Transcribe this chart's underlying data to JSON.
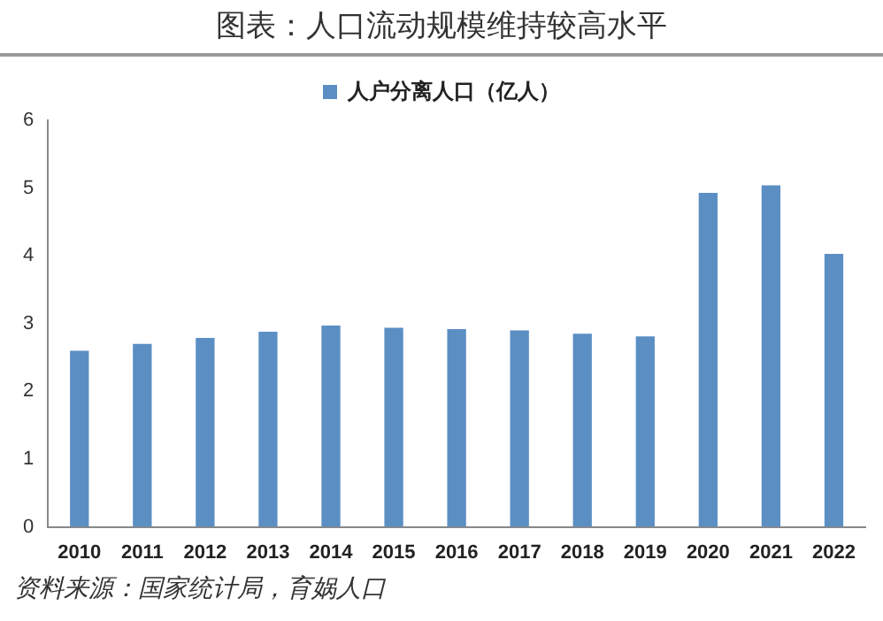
{
  "chart_data": {
    "type": "bar",
    "title": "图表：人口流动规模维持较高水平",
    "categories": [
      "2010",
      "2011",
      "2012",
      "2013",
      "2014",
      "2015",
      "2016",
      "2017",
      "2018",
      "2019",
      "2020",
      "2021",
      "2022"
    ],
    "series": [
      {
        "name": "人户分离人口（亿人）",
        "color": "#5b8fc4",
        "values": [
          2.6,
          2.7,
          2.79,
          2.88,
          2.97,
          2.94,
          2.92,
          2.9,
          2.85,
          2.81,
          4.93,
          5.04,
          4.03
        ]
      }
    ],
    "ylim": [
      0,
      6
    ],
    "yticks": [
      0,
      1,
      2,
      3,
      4,
      5,
      6
    ],
    "grid": false,
    "legend": "top",
    "annotations": [
      "资料来源：国家统计局，育娲人口"
    ]
  }
}
